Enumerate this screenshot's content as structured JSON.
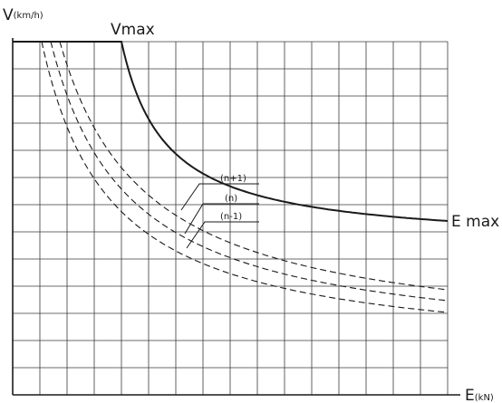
{
  "diagram": {
    "y_axis_label": {
      "main": "V",
      "unit": "(km/h)"
    },
    "x_axis_label": {
      "main": "E",
      "unit": "(kN)"
    },
    "vmax_label": "Vmax",
    "emax_label": "E max",
    "curve_labels": [
      "(n+1)",
      "(n)",
      "(n-1)"
    ],
    "line_color": "#1a1a1a",
    "grid_color": "#3a3a3a"
  }
}
